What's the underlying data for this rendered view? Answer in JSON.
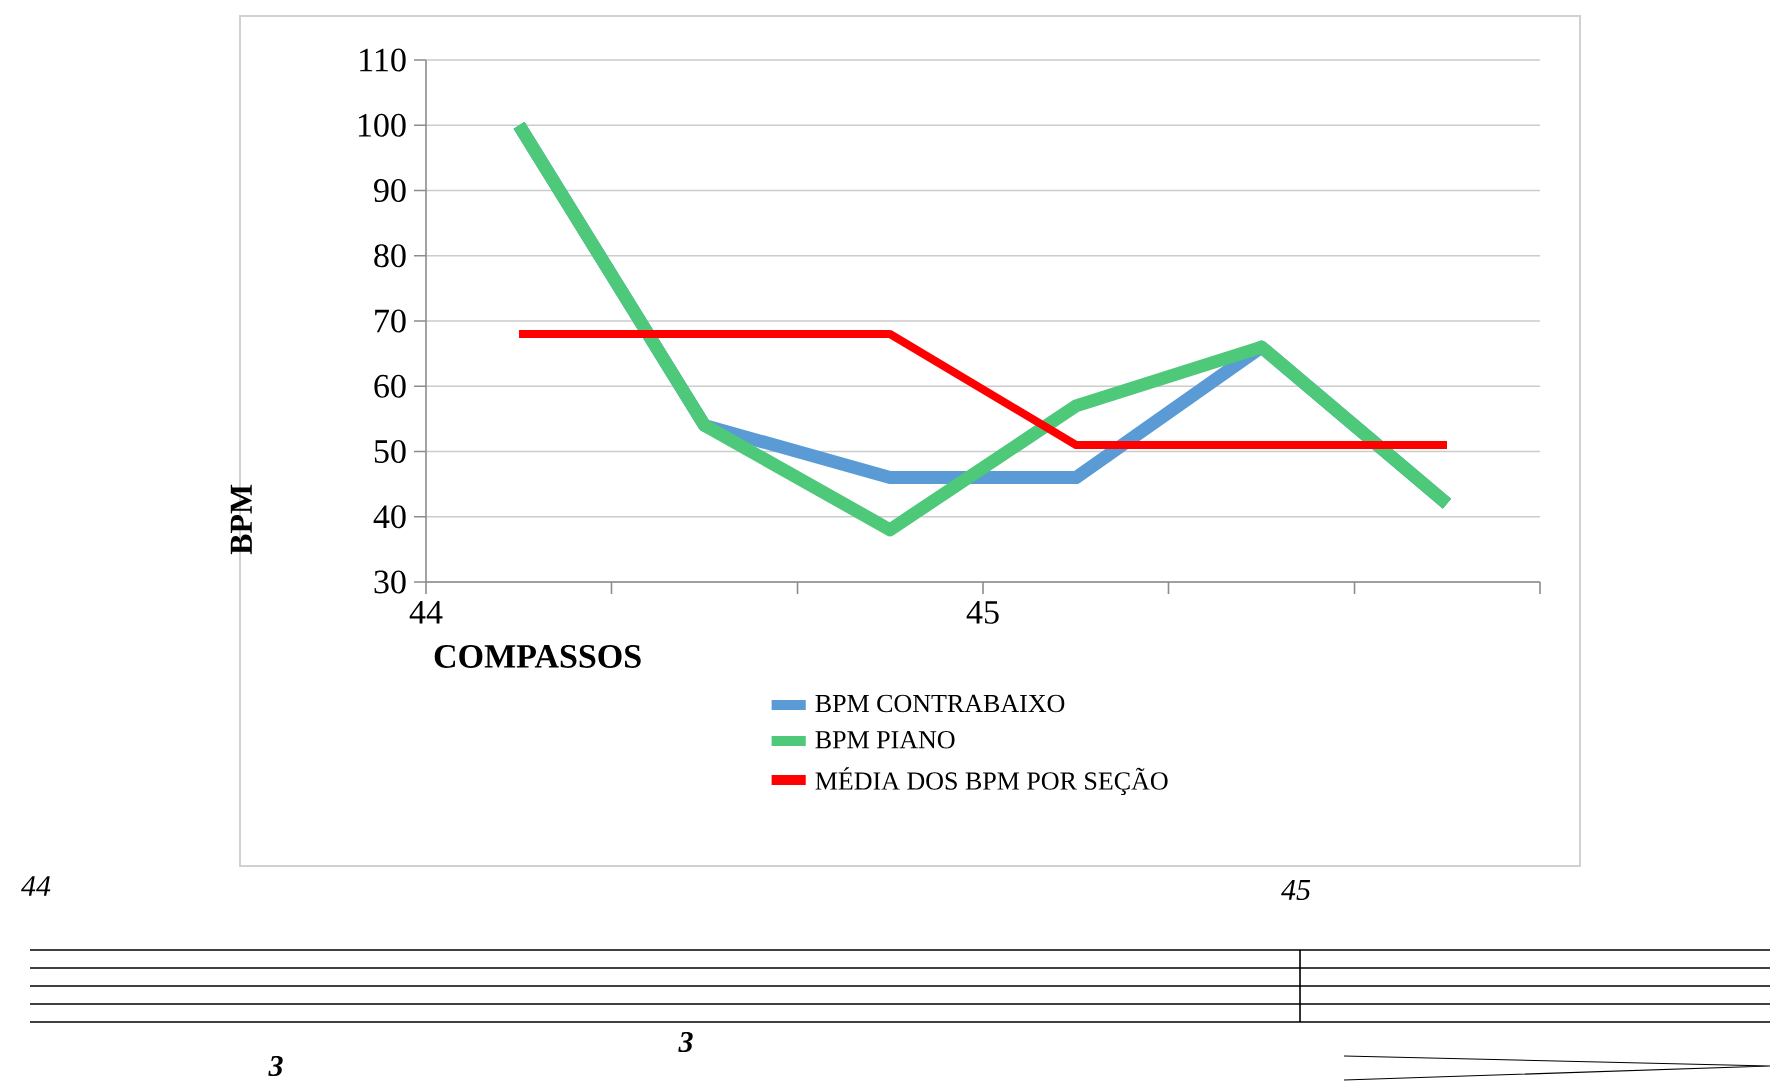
{
  "chart_data": {
    "type": "line",
    "xlabel": "COMPASSOS",
    "ylabel": "BPM",
    "x": [
      44.167,
      44.5,
      44.833,
      45.167,
      45.5,
      45.833
    ],
    "xlim": [
      44,
      46
    ],
    "xticks": [
      44,
      {
        "value": 44.333,
        "label": null
      },
      {
        "value": 44.667,
        "label": null
      },
      45,
      {
        "value": 45.333,
        "label": null
      },
      {
        "value": 45.667,
        "label": null
      },
      {
        "value": 46,
        "label": null
      }
    ],
    "ylim": [
      30,
      110
    ],
    "yticks": [
      30,
      40,
      50,
      60,
      70,
      80,
      90,
      100,
      110
    ],
    "grid": "y",
    "legend": "bottom",
    "marker": "none",
    "line_style": "solid",
    "series": [
      {
        "name": "BPM CONTRABAIXO",
        "color": "#5b9bd5",
        "values": [
          100,
          54,
          46,
          46,
          66,
          42
        ]
      },
      {
        "name": "BPM PIANO",
        "color": "#4ec97a",
        "values": [
          100,
          54,
          38,
          57,
          66,
          42
        ]
      },
      {
        "name": "MÉDIA DOS BPM POR SEÇÃO",
        "color": "#ff0000",
        "values": [
          68,
          68,
          68,
          51,
          51,
          51
        ]
      }
    ],
    "annotations": [
      "44",
      "45",
      "3",
      "3"
    ]
  }
}
